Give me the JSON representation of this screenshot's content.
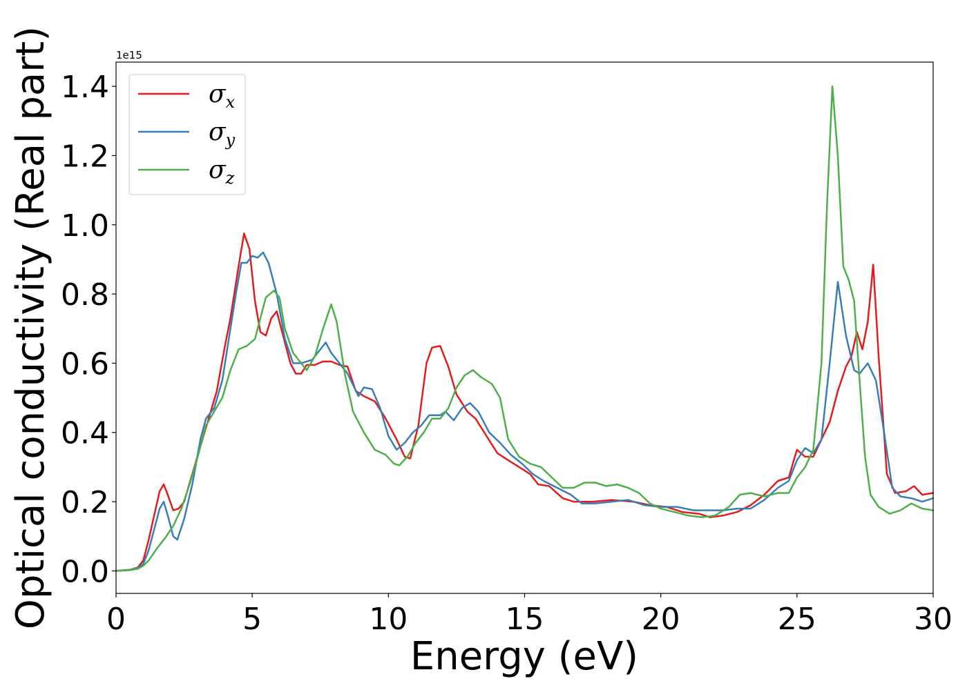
{
  "chart_data": {
    "type": "line",
    "xlabel": "Energy (eV)",
    "ylabel": "Optical conductivity (Real part)",
    "y_offset_text": "1e15",
    "y_scale_factor": 1000000000000000.0,
    "xlim": [
      0,
      30
    ],
    "ylim": [
      -0.065,
      1.47
    ],
    "x_ticks": [
      0,
      5,
      10,
      15,
      20,
      25,
      30
    ],
    "x_tick_labels": [
      "0",
      "5",
      "10",
      "15",
      "20",
      "25",
      "30"
    ],
    "y_ticks": [
      0.0,
      0.2,
      0.4,
      0.6,
      0.8,
      1.0,
      1.2,
      1.4
    ],
    "y_tick_labels": [
      "0.0",
      "0.2",
      "0.4",
      "0.6",
      "0.8",
      "1.0",
      "1.2",
      "1.4"
    ],
    "grid": false,
    "legend_position": "top-left",
    "series": [
      {
        "name": "σx",
        "symbol": "σ",
        "subscript": "x",
        "color": "#e41a1c",
        "points": [
          [
            0,
            0
          ],
          [
            0.5,
            0.003
          ],
          [
            0.8,
            0.01
          ],
          [
            1.0,
            0.03
          ],
          [
            1.2,
            0.09
          ],
          [
            1.4,
            0.16
          ],
          [
            1.6,
            0.23
          ],
          [
            1.75,
            0.25
          ],
          [
            1.9,
            0.22
          ],
          [
            2.1,
            0.175
          ],
          [
            2.3,
            0.18
          ],
          [
            2.5,
            0.2
          ],
          [
            2.8,
            0.28
          ],
          [
            3.1,
            0.36
          ],
          [
            3.4,
            0.44
          ],
          [
            3.7,
            0.52
          ],
          [
            4.0,
            0.65
          ],
          [
            4.2,
            0.73
          ],
          [
            4.5,
            0.88
          ],
          [
            4.7,
            0.975
          ],
          [
            4.9,
            0.93
          ],
          [
            5.1,
            0.78
          ],
          [
            5.3,
            0.69
          ],
          [
            5.5,
            0.68
          ],
          [
            5.7,
            0.73
          ],
          [
            5.9,
            0.75
          ],
          [
            6.1,
            0.69
          ],
          [
            6.4,
            0.6
          ],
          [
            6.6,
            0.57
          ],
          [
            6.8,
            0.57
          ],
          [
            7.0,
            0.595
          ],
          [
            7.3,
            0.595
          ],
          [
            7.6,
            0.605
          ],
          [
            7.9,
            0.605
          ],
          [
            8.2,
            0.595
          ],
          [
            8.5,
            0.59
          ],
          [
            8.8,
            0.52
          ],
          [
            9.1,
            0.505
          ],
          [
            9.5,
            0.49
          ],
          [
            9.9,
            0.44
          ],
          [
            10.3,
            0.38
          ],
          [
            10.6,
            0.33
          ],
          [
            10.8,
            0.325
          ],
          [
            11.1,
            0.42
          ],
          [
            11.4,
            0.6
          ],
          [
            11.6,
            0.645
          ],
          [
            11.9,
            0.65
          ],
          [
            12.2,
            0.59
          ],
          [
            12.5,
            0.51
          ],
          [
            12.9,
            0.46
          ],
          [
            13.2,
            0.44
          ],
          [
            13.6,
            0.39
          ],
          [
            14.0,
            0.34
          ],
          [
            14.4,
            0.32
          ],
          [
            14.8,
            0.3
          ],
          [
            15.2,
            0.28
          ],
          [
            15.5,
            0.25
          ],
          [
            15.9,
            0.245
          ],
          [
            16.4,
            0.21
          ],
          [
            16.8,
            0.2
          ],
          [
            17.5,
            0.2
          ],
          [
            18.2,
            0.205
          ],
          [
            19.0,
            0.2
          ],
          [
            19.6,
            0.19
          ],
          [
            20.2,
            0.185
          ],
          [
            20.8,
            0.17
          ],
          [
            21.4,
            0.165
          ],
          [
            21.8,
            0.155
          ],
          [
            22.3,
            0.16
          ],
          [
            22.8,
            0.17
          ],
          [
            23.3,
            0.19
          ],
          [
            23.8,
            0.22
          ],
          [
            24.3,
            0.26
          ],
          [
            24.7,
            0.27
          ],
          [
            25.0,
            0.35
          ],
          [
            25.3,
            0.33
          ],
          [
            25.6,
            0.33
          ],
          [
            25.9,
            0.38
          ],
          [
            26.2,
            0.43
          ],
          [
            26.5,
            0.52
          ],
          [
            26.8,
            0.59
          ],
          [
            27.0,
            0.62
          ],
          [
            27.2,
            0.69
          ],
          [
            27.4,
            0.64
          ],
          [
            27.6,
            0.72
          ],
          [
            27.8,
            0.885
          ],
          [
            28.0,
            0.62
          ],
          [
            28.3,
            0.28
          ],
          [
            28.6,
            0.225
          ],
          [
            29.0,
            0.23
          ],
          [
            29.3,
            0.245
          ],
          [
            29.6,
            0.22
          ],
          [
            30.0,
            0.225
          ]
        ]
      },
      {
        "name": "σy",
        "symbol": "σ",
        "subscript": "y",
        "color": "#377eb8",
        "points": [
          [
            0,
            0
          ],
          [
            0.5,
            0.003
          ],
          [
            0.8,
            0.008
          ],
          [
            1.0,
            0.02
          ],
          [
            1.2,
            0.06
          ],
          [
            1.4,
            0.12
          ],
          [
            1.6,
            0.18
          ],
          [
            1.75,
            0.2
          ],
          [
            1.9,
            0.16
          ],
          [
            2.1,
            0.1
          ],
          [
            2.25,
            0.09
          ],
          [
            2.5,
            0.15
          ],
          [
            2.8,
            0.25
          ],
          [
            3.1,
            0.38
          ],
          [
            3.3,
            0.44
          ],
          [
            3.6,
            0.47
          ],
          [
            3.9,
            0.55
          ],
          [
            4.2,
            0.7
          ],
          [
            4.4,
            0.8
          ],
          [
            4.6,
            0.89
          ],
          [
            4.8,
            0.89
          ],
          [
            5.0,
            0.91
          ],
          [
            5.2,
            0.905
          ],
          [
            5.4,
            0.92
          ],
          [
            5.6,
            0.89
          ],
          [
            5.9,
            0.8
          ],
          [
            6.2,
            0.67
          ],
          [
            6.5,
            0.6
          ],
          [
            6.8,
            0.6
          ],
          [
            7.2,
            0.61
          ],
          [
            7.5,
            0.64
          ],
          [
            7.7,
            0.66
          ],
          [
            7.9,
            0.63
          ],
          [
            8.2,
            0.6
          ],
          [
            8.5,
            0.57
          ],
          [
            8.9,
            0.505
          ],
          [
            9.1,
            0.53
          ],
          [
            9.4,
            0.525
          ],
          [
            9.7,
            0.47
          ],
          [
            10.0,
            0.39
          ],
          [
            10.3,
            0.35
          ],
          [
            10.6,
            0.37
          ],
          [
            10.9,
            0.4
          ],
          [
            11.2,
            0.42
          ],
          [
            11.5,
            0.45
          ],
          [
            11.9,
            0.45
          ],
          [
            12.1,
            0.46
          ],
          [
            12.4,
            0.435
          ],
          [
            12.7,
            0.47
          ],
          [
            13.0,
            0.485
          ],
          [
            13.3,
            0.46
          ],
          [
            13.7,
            0.4
          ],
          [
            14.1,
            0.37
          ],
          [
            14.5,
            0.335
          ],
          [
            14.9,
            0.31
          ],
          [
            15.3,
            0.28
          ],
          [
            15.7,
            0.26
          ],
          [
            16.2,
            0.24
          ],
          [
            16.7,
            0.22
          ],
          [
            17.1,
            0.195
          ],
          [
            17.6,
            0.195
          ],
          [
            18.2,
            0.2
          ],
          [
            18.8,
            0.205
          ],
          [
            19.4,
            0.19
          ],
          [
            20.0,
            0.185
          ],
          [
            20.6,
            0.185
          ],
          [
            21.2,
            0.175
          ],
          [
            21.7,
            0.175
          ],
          [
            22.3,
            0.175
          ],
          [
            22.8,
            0.18
          ],
          [
            23.3,
            0.18
          ],
          [
            23.8,
            0.205
          ],
          [
            24.3,
            0.24
          ],
          [
            24.7,
            0.26
          ],
          [
            25.0,
            0.32
          ],
          [
            25.3,
            0.355
          ],
          [
            25.6,
            0.34
          ],
          [
            25.9,
            0.38
          ],
          [
            26.2,
            0.6
          ],
          [
            26.5,
            0.835
          ],
          [
            26.8,
            0.68
          ],
          [
            27.1,
            0.58
          ],
          [
            27.3,
            0.57
          ],
          [
            27.6,
            0.6
          ],
          [
            27.9,
            0.55
          ],
          [
            28.2,
            0.4
          ],
          [
            28.5,
            0.24
          ],
          [
            28.8,
            0.215
          ],
          [
            29.2,
            0.21
          ],
          [
            29.6,
            0.2
          ],
          [
            30.0,
            0.21
          ]
        ]
      },
      {
        "name": "σz",
        "symbol": "σ",
        "subscript": "z",
        "color": "#4daf4a",
        "points": [
          [
            0,
            0
          ],
          [
            0.5,
            0.002
          ],
          [
            0.8,
            0.006
          ],
          [
            1.0,
            0.015
          ],
          [
            1.2,
            0.03
          ],
          [
            1.5,
            0.065
          ],
          [
            1.8,
            0.095
          ],
          [
            2.1,
            0.13
          ],
          [
            2.4,
            0.18
          ],
          [
            2.7,
            0.25
          ],
          [
            3.0,
            0.33
          ],
          [
            3.3,
            0.42
          ],
          [
            3.6,
            0.46
          ],
          [
            3.9,
            0.5
          ],
          [
            4.2,
            0.58
          ],
          [
            4.5,
            0.64
          ],
          [
            4.8,
            0.65
          ],
          [
            5.1,
            0.67
          ],
          [
            5.3,
            0.73
          ],
          [
            5.5,
            0.79
          ],
          [
            5.8,
            0.81
          ],
          [
            6.0,
            0.79
          ],
          [
            6.2,
            0.7
          ],
          [
            6.5,
            0.63
          ],
          [
            6.8,
            0.6
          ],
          [
            7.0,
            0.58
          ],
          [
            7.3,
            0.62
          ],
          [
            7.6,
            0.7
          ],
          [
            7.9,
            0.77
          ],
          [
            8.1,
            0.72
          ],
          [
            8.4,
            0.57
          ],
          [
            8.7,
            0.46
          ],
          [
            9.1,
            0.4
          ],
          [
            9.5,
            0.35
          ],
          [
            9.9,
            0.335
          ],
          [
            10.2,
            0.31
          ],
          [
            10.4,
            0.305
          ],
          [
            10.7,
            0.33
          ],
          [
            11.0,
            0.37
          ],
          [
            11.3,
            0.4
          ],
          [
            11.6,
            0.44
          ],
          [
            11.9,
            0.44
          ],
          [
            12.2,
            0.47
          ],
          [
            12.5,
            0.53
          ],
          [
            12.8,
            0.565
          ],
          [
            13.1,
            0.58
          ],
          [
            13.4,
            0.56
          ],
          [
            13.8,
            0.54
          ],
          [
            14.1,
            0.5
          ],
          [
            14.4,
            0.38
          ],
          [
            14.8,
            0.33
          ],
          [
            15.2,
            0.31
          ],
          [
            15.6,
            0.3
          ],
          [
            16.0,
            0.27
          ],
          [
            16.4,
            0.24
          ],
          [
            16.8,
            0.24
          ],
          [
            17.2,
            0.255
          ],
          [
            17.6,
            0.255
          ],
          [
            18.0,
            0.245
          ],
          [
            18.4,
            0.25
          ],
          [
            18.8,
            0.24
          ],
          [
            19.2,
            0.225
          ],
          [
            19.6,
            0.195
          ],
          [
            20.0,
            0.18
          ],
          [
            20.5,
            0.17
          ],
          [
            21.0,
            0.16
          ],
          [
            21.5,
            0.155
          ],
          [
            22.0,
            0.16
          ],
          [
            22.5,
            0.185
          ],
          [
            22.9,
            0.22
          ],
          [
            23.3,
            0.225
          ],
          [
            23.8,
            0.215
          ],
          [
            24.3,
            0.225
          ],
          [
            24.7,
            0.225
          ],
          [
            25.0,
            0.27
          ],
          [
            25.3,
            0.3
          ],
          [
            25.6,
            0.35
          ],
          [
            25.9,
            0.6
          ],
          [
            26.1,
            1.05
          ],
          [
            26.3,
            1.4
          ],
          [
            26.5,
            1.2
          ],
          [
            26.7,
            0.88
          ],
          [
            26.9,
            0.84
          ],
          [
            27.1,
            0.78
          ],
          [
            27.3,
            0.55
          ],
          [
            27.5,
            0.33
          ],
          [
            27.7,
            0.22
          ],
          [
            28.0,
            0.185
          ],
          [
            28.4,
            0.165
          ],
          [
            28.8,
            0.175
          ],
          [
            29.2,
            0.195
          ],
          [
            29.6,
            0.18
          ],
          [
            30.0,
            0.175
          ]
        ]
      }
    ]
  }
}
